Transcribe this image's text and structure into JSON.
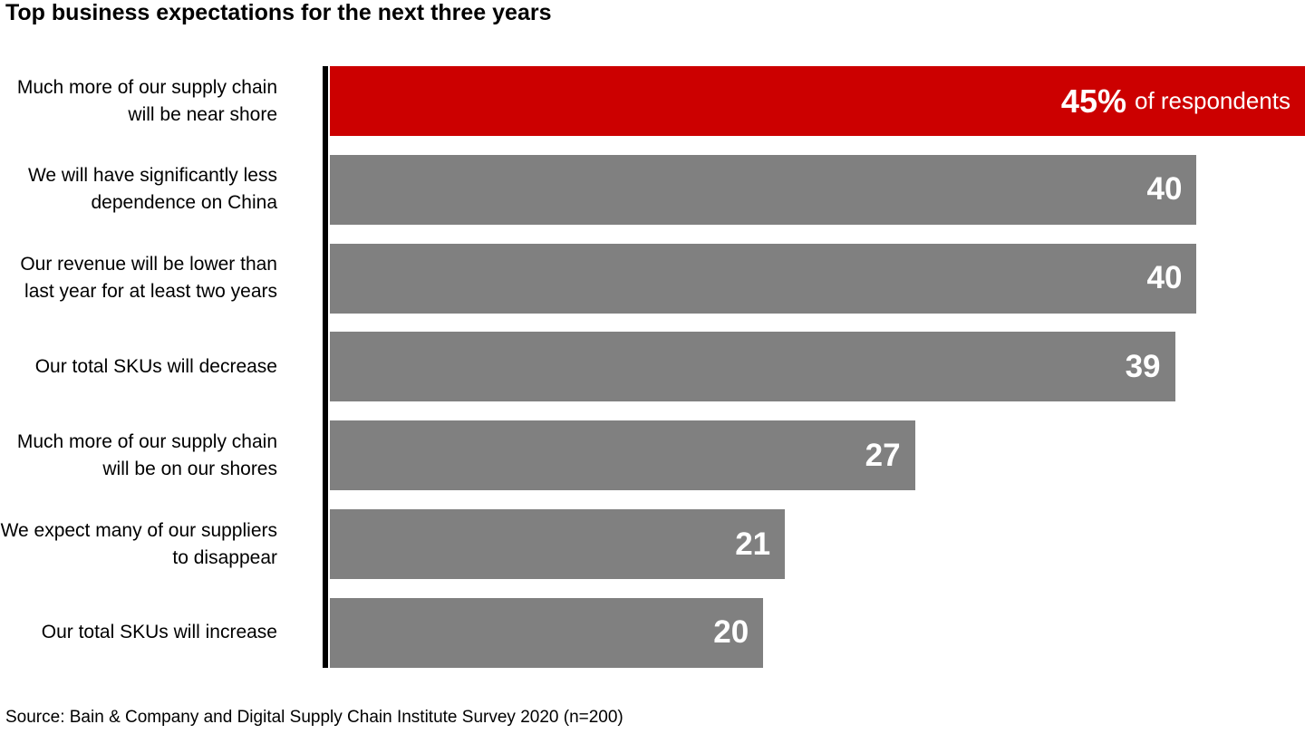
{
  "title": "Top business expectations for the next three years",
  "source": "Source: Bain & Company and Digital Supply Chain Institute Survey 2020 (n=200)",
  "colors": {
    "highlight_bar": "#CC0000",
    "bar": "#808080",
    "axis": "#000000",
    "value_text": "#FFFFFF",
    "label_text": "#000000",
    "background": "#FFFFFF"
  },
  "chart_data": {
    "type": "bar",
    "orientation": "horizontal",
    "title": "Top business expectations for the next three years",
    "categories": [
      "Much more of our supply chain will be near shore",
      "We will have significantly less dependence on China",
      "Our revenue will be lower than last year for at least two years",
      "Our total SKUs will decrease",
      "Much more of our supply chain will be on our shores",
      "We expect many of our suppliers to disappear",
      "Our total SKUs will increase"
    ],
    "values": [
      45,
      40,
      40,
      39,
      27,
      21,
      20
    ],
    "value_labels": [
      "45%",
      "40",
      "40",
      "39",
      "27",
      "21",
      "20"
    ],
    "first_bar_suffix": "of respondents",
    "unit": "% of respondents",
    "xlabel": "",
    "ylabel": "",
    "xlim": [
      0,
      45
    ],
    "grid": false,
    "legend": false,
    "highlight_index": 0
  }
}
